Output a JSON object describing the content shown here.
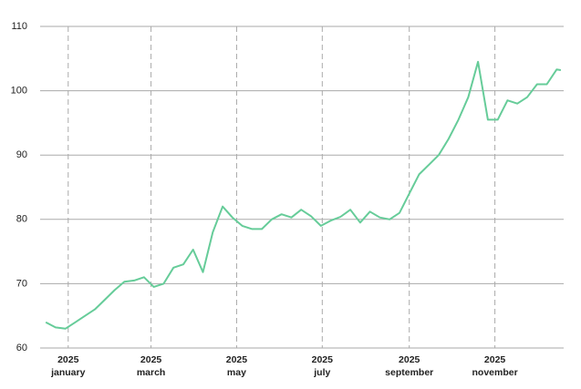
{
  "chart_data": {
    "type": "line",
    "x": [
      "2024-12-16",
      "2024-12-23",
      "2024-12-30",
      "2025-01-06",
      "2025-01-13",
      "2025-01-20",
      "2025-01-27",
      "2025-02-03",
      "2025-02-10",
      "2025-02-17",
      "2025-02-24",
      "2025-03-03",
      "2025-03-10",
      "2025-03-17",
      "2025-03-24",
      "2025-03-31",
      "2025-04-07",
      "2025-04-14",
      "2025-04-21",
      "2025-04-28",
      "2025-05-05",
      "2025-05-12",
      "2025-05-19",
      "2025-05-26",
      "2025-06-02",
      "2025-06-09",
      "2025-06-16",
      "2025-06-23",
      "2025-06-30",
      "2025-07-07",
      "2025-07-14",
      "2025-07-21",
      "2025-07-28",
      "2025-08-04",
      "2025-08-11",
      "2025-08-18",
      "2025-08-25",
      "2025-09-01",
      "2025-09-08",
      "2025-09-15",
      "2025-09-22",
      "2025-09-29",
      "2025-10-06",
      "2025-10-13",
      "2025-10-20",
      "2025-10-27",
      "2025-11-03",
      "2025-11-10",
      "2025-11-17",
      "2025-11-24",
      "2025-12-01",
      "2025-12-08",
      "2025-12-15",
      "2025-12-18"
    ],
    "series": [
      {
        "color": "#66cc99",
        "values": [
          64,
          63.2,
          63,
          64,
          65,
          66,
          67.5,
          69,
          70.3,
          70.5,
          71,
          69.5,
          70,
          72.5,
          73,
          75.3,
          71.8,
          78,
          82,
          80.3,
          79,
          78.5,
          78.5,
          80,
          80.8,
          80.3,
          81.5,
          80.5,
          79,
          79.8,
          80.4,
          81.5,
          79.5,
          81.2,
          80.3,
          80,
          81,
          84,
          87,
          88.5,
          90,
          92.5,
          95.5,
          99,
          104.5,
          95.5,
          95.5,
          98.5,
          98,
          99,
          101,
          101,
          103.3,
          103.2
        ]
      }
    ],
    "xlim": [
      "2024-12-12",
      "2025-12-20"
    ],
    "xticks": [
      {
        "value": "2025-01-01",
        "label": [
          "2025",
          "january"
        ]
      },
      {
        "value": "2025-03-01",
        "label": [
          "2025",
          "march"
        ]
      },
      {
        "value": "2025-05-01",
        "label": [
          "2025",
          "may"
        ]
      },
      {
        "value": "2025-07-01",
        "label": [
          "2025",
          "july"
        ]
      },
      {
        "value": "2025-09-01",
        "label": [
          "2025",
          "september"
        ]
      },
      {
        "value": "2025-11-01",
        "label": [
          "2025",
          "november"
        ]
      }
    ],
    "ylim": [
      60,
      110
    ],
    "yticks": [
      60,
      70,
      80,
      90,
      100,
      110
    ],
    "grid": true
  }
}
